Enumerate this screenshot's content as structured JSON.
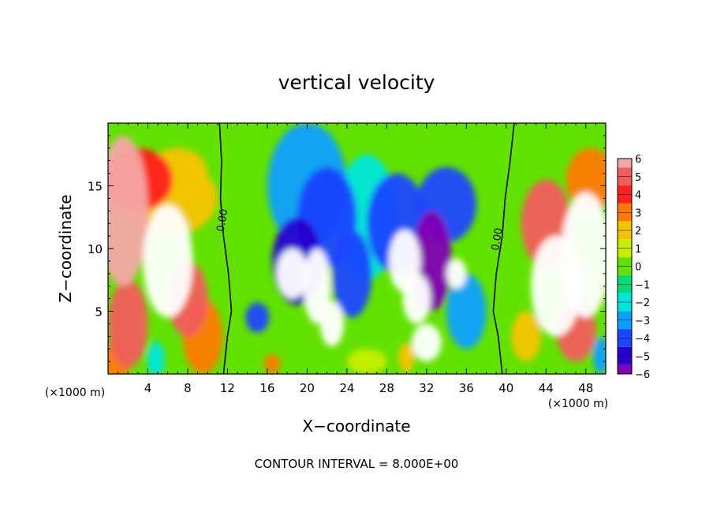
{
  "chart_data": {
    "type": "heatmap",
    "title": "vertical velocity",
    "xlabel": "X−coordinate",
    "ylabel": "Z−coordinate",
    "x_units_left": "(×1000 m)",
    "x_units_right": "(×1000 m)",
    "footer": "CONTOUR INTERVAL = 8.000E+00",
    "xlim": [
      0,
      50
    ],
    "ylim": [
      0,
      20
    ],
    "xticks": [
      4,
      8,
      12,
      16,
      20,
      24,
      28,
      32,
      36,
      40,
      44,
      48
    ],
    "yticks": [
      5,
      10,
      15
    ],
    "xtick_labels": [
      "4",
      "8",
      "12",
      "16",
      "20",
      "24",
      "28",
      "32",
      "36",
      "40",
      "44",
      "48"
    ],
    "ytick_labels": [
      "5",
      "10",
      "15"
    ],
    "colorbar": {
      "levels": [
        6,
        5,
        4,
        3,
        2,
        1,
        0,
        -1,
        -2,
        -3,
        -4,
        -5,
        -6
      ],
      "labels": [
        "6",
        "5",
        "4",
        "3",
        "2",
        "1",
        "0",
        "−1",
        "−2",
        "−3",
        "−4",
        "−5",
        "−6"
      ],
      "colors": [
        "#f4a6a6",
        "#f25c5c",
        "#ff2020",
        "#ff7a00",
        "#f5c400",
        "#c8ee00",
        "#62e200",
        "#00dc78",
        "#00e6dc",
        "#0aa0ff",
        "#1a46ff",
        "#2800d2",
        "#8200b4"
      ]
    },
    "contour_labels": [
      {
        "text": "0.00",
        "x": 11.8,
        "y": 12.2
      },
      {
        "text": "0.00",
        "x": 39.4,
        "y": 10.7
      }
    ],
    "zero_contours": [
      [
        [
          11.2,
          20
        ],
        [
          11.4,
          17
        ],
        [
          11.3,
          14
        ],
        [
          11.6,
          11
        ],
        [
          12.1,
          8
        ],
        [
          12.4,
          5
        ],
        [
          12.0,
          3
        ],
        [
          11.6,
          0
        ]
      ],
      [
        [
          40.8,
          20
        ],
        [
          40.4,
          17
        ],
        [
          39.9,
          14
        ],
        [
          39.6,
          11
        ],
        [
          39.0,
          8
        ],
        [
          38.7,
          5
        ],
        [
          39.2,
          3
        ],
        [
          39.6,
          0
        ]
      ]
    ],
    "cells": [
      {
        "x": 1.5,
        "y": 13.0,
        "sx": 2.5,
        "sy": 6.0,
        "v": 6.0
      },
      {
        "x": 3.0,
        "y": 15.5,
        "sx": 3.5,
        "sy": 2.5,
        "v": 3.5
      },
      {
        "x": 6.0,
        "y": 9.0,
        "sx": 2.5,
        "sy": 4.5,
        "v": 6.5
      },
      {
        "x": 8.0,
        "y": 6.0,
        "sx": 2.0,
        "sy": 3.0,
        "v": 4.5
      },
      {
        "x": 9.5,
        "y": 3.0,
        "sx": 2.0,
        "sy": 3.0,
        "v": 3.0
      },
      {
        "x": 2.0,
        "y": 4.0,
        "sx": 2.0,
        "sy": 3.5,
        "v": 4.5
      },
      {
        "x": 0.8,
        "y": 1.0,
        "sx": 1.5,
        "sy": 1.5,
        "v": 3.0
      },
      {
        "x": 4.8,
        "y": 1.2,
        "sx": 0.9,
        "sy": 1.4,
        "v": -2.5
      },
      {
        "x": 7.0,
        "y": 16.0,
        "sx": 3.0,
        "sy": 2.0,
        "v": 2.0
      },
      {
        "x": 6.0,
        "y": 14.0,
        "sx": 5.0,
        "sy": 3.0,
        "v": 1.5
      },
      {
        "x": 16.5,
        "y": 0.8,
        "sx": 0.8,
        "sy": 0.8,
        "v": 2.5
      },
      {
        "x": 20.0,
        "y": 15.0,
        "sx": 4.0,
        "sy": 5.0,
        "v": -3.0
      },
      {
        "x": 22.0,
        "y": 12.5,
        "sx": 3.0,
        "sy": 4.0,
        "v": -4.5
      },
      {
        "x": 19.0,
        "y": 9.0,
        "sx": 2.5,
        "sy": 3.5,
        "v": -5.5
      },
      {
        "x": 18.5,
        "y": 8.0,
        "sx": 1.6,
        "sy": 2.0,
        "v": 6.5
      },
      {
        "x": 21.0,
        "y": 7.0,
        "sx": 1.4,
        "sy": 3.0,
        "v": 6.5
      },
      {
        "x": 22.5,
        "y": 4.0,
        "sx": 1.2,
        "sy": 1.8,
        "v": 6.5
      },
      {
        "x": 24.5,
        "y": 8.0,
        "sx": 2.0,
        "sy": 3.5,
        "v": -4.0
      },
      {
        "x": 26.0,
        "y": 12.5,
        "sx": 3.0,
        "sy": 5.0,
        "v": -2.5
      },
      {
        "x": 29.0,
        "y": 12.0,
        "sx": 3.0,
        "sy": 4.0,
        "v": -4.5
      },
      {
        "x": 29.8,
        "y": 9.0,
        "sx": 1.6,
        "sy": 2.5,
        "v": 6.5
      },
      {
        "x": 31.0,
        "y": 6.0,
        "sx": 1.4,
        "sy": 2.0,
        "v": 6.5
      },
      {
        "x": 32.5,
        "y": 9.0,
        "sx": 2.0,
        "sy": 4.0,
        "v": -5.8
      },
      {
        "x": 34.0,
        "y": 13.5,
        "sx": 3.0,
        "sy": 3.0,
        "v": -4.0
      },
      {
        "x": 35.0,
        "y": 8.0,
        "sx": 1.0,
        "sy": 1.2,
        "v": 6.5
      },
      {
        "x": 32.0,
        "y": 2.5,
        "sx": 1.5,
        "sy": 1.5,
        "v": 6.5
      },
      {
        "x": 26.0,
        "y": 1.0,
        "sx": 2.0,
        "sy": 1.0,
        "v": 1.0
      },
      {
        "x": 30.0,
        "y": 1.3,
        "sx": 0.8,
        "sy": 1.2,
        "v": 2.0
      },
      {
        "x": 36.0,
        "y": 5.0,
        "sx": 2.0,
        "sy": 3.0,
        "v": -3.0
      },
      {
        "x": 15.0,
        "y": 4.5,
        "sx": 1.2,
        "sy": 1.2,
        "v": -4.0
      },
      {
        "x": 44.0,
        "y": 12.0,
        "sx": 2.5,
        "sy": 3.5,
        "v": 4.5
      },
      {
        "x": 45.0,
        "y": 7.0,
        "sx": 2.5,
        "sy": 4.0,
        "v": 6.5
      },
      {
        "x": 48.0,
        "y": 9.5,
        "sx": 2.5,
        "sy": 5.0,
        "v": 6.5
      },
      {
        "x": 48.5,
        "y": 15.5,
        "sx": 2.5,
        "sy": 2.5,
        "v": 3.0
      },
      {
        "x": 47.0,
        "y": 3.5,
        "sx": 2.0,
        "sy": 2.5,
        "v": 5.0
      },
      {
        "x": 49.5,
        "y": 1.5,
        "sx": 0.8,
        "sy": 1.5,
        "v": -3.5
      },
      {
        "x": 42.0,
        "y": 3.0,
        "sx": 1.5,
        "sy": 2.0,
        "v": 2.0
      }
    ]
  }
}
